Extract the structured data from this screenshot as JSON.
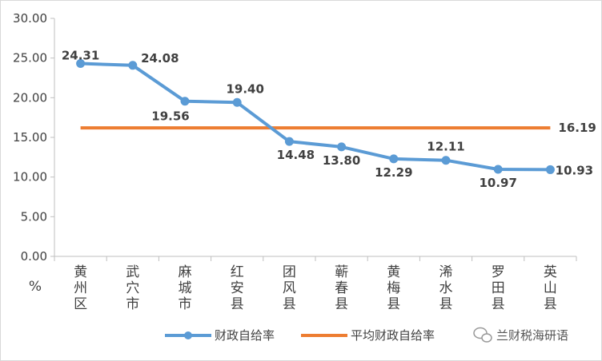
{
  "chart_data": {
    "type": "line",
    "categories": [
      "黄州区",
      "武穴市",
      "麻城市",
      "红安县",
      "团风县",
      "蕲春县",
      "黄梅县",
      "浠水县",
      "罗田县",
      "英山县"
    ],
    "series": [
      {
        "name": "财政自给率",
        "color": "#5b9bd5",
        "values": [
          24.31,
          24.08,
          19.56,
          19.4,
          14.48,
          13.8,
          12.29,
          12.11,
          10.97,
          10.93
        ],
        "labels": [
          "24.31",
          "24.08",
          "19.56",
          "19.40",
          "14.48",
          "13.80",
          "12.29",
          "12.11",
          "10.97",
          "10.93"
        ]
      },
      {
        "name": "平均财政自给率",
        "color": "#ed7d31",
        "values": [
          16.19,
          16.19,
          16.19,
          16.19,
          16.19,
          16.19,
          16.19,
          16.19,
          16.19,
          16.19
        ],
        "end_label": "16.19"
      }
    ],
    "y_ticks": [
      "0.00",
      "5.00",
      "10.00",
      "15.00",
      "20.00",
      "25.00",
      "30.00"
    ],
    "ylim": [
      0,
      30
    ],
    "y_unit": "%",
    "grid": false,
    "legend_position": "bottom"
  },
  "watermark": {
    "text": "兰财税海研语",
    "icon": "wechat-icon"
  }
}
